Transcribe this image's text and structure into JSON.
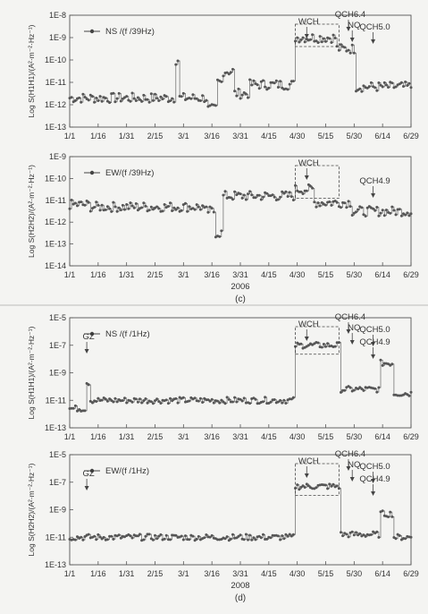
{
  "chart_data": [
    {
      "type": "line",
      "legend": "NS /(f /39Hz)",
      "ylabel": "Log S(H1H1)/(A²·m⁻²·Hz⁻¹)",
      "y_exponents": [
        -13,
        -8
      ],
      "y_ticks": [
        "1E-13",
        "1E-12",
        "1E-11",
        "1E-10",
        "1E-9",
        "1E-8"
      ],
      "x_ticks": [
        "1/1",
        "1/16",
        "1/31",
        "2/15",
        "3/1",
        "3/16",
        "3/31",
        "4/15",
        "4/30",
        "5/15",
        "5/30",
        "6/14",
        "6/29"
      ],
      "x_range_days": [
        0,
        180
      ],
      "annotations": [
        "WCH",
        "QCH6.4",
        "NQ",
        "QCH5.0"
      ],
      "segments": [
        {
          "day_start": 0,
          "day_end": 55,
          "log_level": -11.7
        },
        {
          "day_start": 56,
          "day_end": 57,
          "log_level": -10.0
        },
        {
          "day_start": 58,
          "day_end": 72,
          "log_level": -11.7
        },
        {
          "day_start": 73,
          "day_end": 77,
          "log_level": -12.2
        },
        {
          "day_start": 78,
          "day_end": 80,
          "log_level": -11.0
        },
        {
          "day_start": 81,
          "day_end": 86,
          "log_level": -10.5
        },
        {
          "day_start": 87,
          "day_end": 94,
          "log_level": -11.5
        },
        {
          "day_start": 95,
          "day_end": 118,
          "log_level": -11.1
        },
        {
          "day_start": 119,
          "day_end": 130,
          "log_level": -9.0
        },
        {
          "day_start": 131,
          "day_end": 140,
          "log_level": -9.0
        },
        {
          "day_start": 141,
          "day_end": 150,
          "log_level": -9.5
        },
        {
          "day_start": 151,
          "day_end": 180,
          "log_level": -11.2
        }
      ]
    },
    {
      "type": "line",
      "legend": "EW/(f /39Hz)",
      "ylabel": "Log S(H2H2)/(A²·m⁻²·Hz⁻¹)",
      "y_exponents": [
        -14,
        -9
      ],
      "y_ticks": [
        "1E-14",
        "1E-13",
        "1E-12",
        "1E-11",
        "1E-10",
        "1E-9"
      ],
      "x_ticks": [
        "1/1",
        "1/16",
        "1/31",
        "2/15",
        "3/1",
        "3/16",
        "3/31",
        "4/15",
        "4/30",
        "5/15",
        "5/30",
        "6/14",
        "6/29"
      ],
      "x_range_days": [
        0,
        180
      ],
      "xlabel": "2006",
      "panel_label": "(c)",
      "annotations": [
        "WCH",
        "QCH4.9"
      ],
      "segments": [
        {
          "day_start": 0,
          "day_end": 10,
          "log_level": -11.2
        },
        {
          "day_start": 11,
          "day_end": 70,
          "log_level": -11.3
        },
        {
          "day_start": 71,
          "day_end": 76,
          "log_level": -11.5
        },
        {
          "day_start": 77,
          "day_end": 80,
          "log_level": -12.5
        },
        {
          "day_start": 81,
          "day_end": 118,
          "log_level": -10.8
        },
        {
          "day_start": 119,
          "day_end": 128,
          "log_level": -10.5
        },
        {
          "day_start": 129,
          "day_end": 148,
          "log_level": -11.1
        },
        {
          "day_start": 149,
          "day_end": 180,
          "log_level": -11.5
        }
      ]
    },
    {
      "type": "line",
      "legend": "NS /(f /1Hz)",
      "ylabel": "Log S(H1H1)/(A²·m⁻²·Hz⁻¹)",
      "y_exponents": [
        -13,
        -5
      ],
      "y_ticks": [
        "1E-13",
        "1E-11",
        "1E-9",
        "1E-7",
        "1E-5"
      ],
      "x_ticks": [
        "1/1",
        "1/16",
        "1/31",
        "2/15",
        "3/1",
        "3/16",
        "3/31",
        "4/15",
        "4/30",
        "5/15",
        "5/30",
        "6/14",
        "6/29"
      ],
      "x_range_days": [
        0,
        180
      ],
      "annotations": [
        "GZ",
        "WCH",
        "QCH6.4",
        "NQ",
        "QCH5.0",
        "QCH4.9"
      ],
      "segments": [
        {
          "day_start": 0,
          "day_end": 8,
          "log_level": -11.6
        },
        {
          "day_start": 9,
          "day_end": 10,
          "log_level": -9.7
        },
        {
          "day_start": 11,
          "day_end": 118,
          "log_level": -11.0
        },
        {
          "day_start": 119,
          "day_end": 142,
          "log_level": -7.0
        },
        {
          "day_start": 143,
          "day_end": 163,
          "log_level": -10.2
        },
        {
          "day_start": 164,
          "day_end": 170,
          "log_level": -8.3
        },
        {
          "day_start": 171,
          "day_end": 180,
          "log_level": -10.5
        }
      ]
    },
    {
      "type": "line",
      "legend": "EW/(f /1Hz)",
      "ylabel": "Log S(H2H2)/(A²·m⁻²·Hz⁻¹)",
      "y_exponents": [
        -13,
        -5
      ],
      "y_ticks": [
        "1E-13",
        "1E-11",
        "1E-9",
        "1E-7",
        "1E-5"
      ],
      "x_ticks": [
        "1/1",
        "1/16",
        "1/31",
        "2/15",
        "3/1",
        "3/16",
        "3/31",
        "4/15",
        "4/30",
        "5/15",
        "5/30",
        "6/14",
        "6/29"
      ],
      "x_range_days": [
        0,
        180
      ],
      "xlabel": "2008",
      "panel_label": "(d)",
      "annotations": [
        "GZ",
        "WCH",
        "QCH6.4",
        "NQ",
        "QCH5.0",
        "QCH4.9"
      ],
      "segments": [
        {
          "day_start": 0,
          "day_end": 118,
          "log_level": -11.0
        },
        {
          "day_start": 119,
          "day_end": 142,
          "log_level": -7.3
        },
        {
          "day_start": 143,
          "day_end": 163,
          "log_level": -10.8
        },
        {
          "day_start": 164,
          "day_end": 170,
          "log_level": -9.3
        },
        {
          "day_start": 171,
          "day_end": 180,
          "log_level": -11.0
        }
      ]
    }
  ]
}
